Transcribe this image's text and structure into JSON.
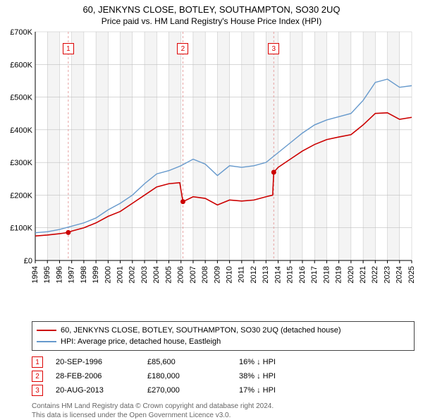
{
  "title": "60, JENKYNS CLOSE, BOTLEY, SOUTHAMPTON, SO30 2UQ",
  "subtitle": "Price paid vs. HM Land Registry's House Price Index (HPI)",
  "chart": {
    "type": "line",
    "x_years": [
      1994,
      1995,
      1996,
      1997,
      1998,
      1999,
      2000,
      2001,
      2002,
      2003,
      2004,
      2005,
      2006,
      2007,
      2008,
      2009,
      2010,
      2011,
      2012,
      2013,
      2014,
      2015,
      2016,
      2017,
      2018,
      2019,
      2020,
      2021,
      2022,
      2023,
      2024,
      2025
    ],
    "xlim": [
      1994,
      2025
    ],
    "ylim": [
      0,
      700000
    ],
    "ytick_step": 100000,
    "ytick_labels": [
      "£0",
      "£100K",
      "£200K",
      "£300K",
      "£400K",
      "£500K",
      "£600K",
      "£700K"
    ],
    "background_color": "#ffffff",
    "alt_band_color": "#f4f4f4",
    "grid_color": "#bfbfbf",
    "axis_color": "#000000",
    "series": [
      {
        "name": "hpi",
        "color": "#6699cc",
        "width": 1.4,
        "points": [
          [
            1994,
            85000
          ],
          [
            1995,
            88000
          ],
          [
            1996,
            95000
          ],
          [
            1997,
            105000
          ],
          [
            1998,
            115000
          ],
          [
            1999,
            130000
          ],
          [
            2000,
            155000
          ],
          [
            2001,
            175000
          ],
          [
            2002,
            200000
          ],
          [
            2003,
            235000
          ],
          [
            2004,
            265000
          ],
          [
            2005,
            275000
          ],
          [
            2006,
            290000
          ],
          [
            2007,
            310000
          ],
          [
            2008,
            295000
          ],
          [
            2009,
            260000
          ],
          [
            2010,
            290000
          ],
          [
            2011,
            285000
          ],
          [
            2012,
            290000
          ],
          [
            2013,
            300000
          ],
          [
            2014,
            330000
          ],
          [
            2015,
            360000
          ],
          [
            2016,
            390000
          ],
          [
            2017,
            415000
          ],
          [
            2018,
            430000
          ],
          [
            2019,
            440000
          ],
          [
            2020,
            450000
          ],
          [
            2021,
            490000
          ],
          [
            2022,
            545000
          ],
          [
            2023,
            555000
          ],
          [
            2024,
            530000
          ],
          [
            2025,
            535000
          ]
        ]
      },
      {
        "name": "property",
        "color": "#cc0000",
        "width": 1.6,
        "points": [
          [
            1994,
            75000
          ],
          [
            1995,
            78000
          ],
          [
            1996,
            82000
          ],
          [
            1996.72,
            85600
          ],
          [
            1997,
            90000
          ],
          [
            1998,
            100000
          ],
          [
            1999,
            115000
          ],
          [
            2000,
            135000
          ],
          [
            2001,
            150000
          ],
          [
            2002,
            175000
          ],
          [
            2003,
            200000
          ],
          [
            2004,
            225000
          ],
          [
            2005,
            235000
          ],
          [
            2005.9,
            238000
          ],
          [
            2006.16,
            180000
          ],
          [
            2007,
            195000
          ],
          [
            2008,
            190000
          ],
          [
            2009,
            170000
          ],
          [
            2010,
            185000
          ],
          [
            2011,
            182000
          ],
          [
            2012,
            185000
          ],
          [
            2013,
            195000
          ],
          [
            2013.55,
            200000
          ],
          [
            2013.64,
            270000
          ],
          [
            2014,
            285000
          ],
          [
            2015,
            310000
          ],
          [
            2016,
            335000
          ],
          [
            2017,
            355000
          ],
          [
            2018,
            370000
          ],
          [
            2019,
            378000
          ],
          [
            2020,
            385000
          ],
          [
            2021,
            415000
          ],
          [
            2022,
            450000
          ],
          [
            2023,
            452000
          ],
          [
            2024,
            432000
          ],
          [
            2025,
            438000
          ]
        ]
      }
    ],
    "sale_markers": [
      {
        "num": "1",
        "x": 1996.72,
        "y": 85600
      },
      {
        "num": "2",
        "x": 2006.16,
        "y": 180000
      },
      {
        "num": "3",
        "x": 2013.64,
        "y": 270000
      }
    ],
    "marker_line_color": "#e6a0a0",
    "marker_dot_color": "#cc0000"
  },
  "legend": {
    "items": [
      {
        "color": "#cc0000",
        "label": "60, JENKYNS CLOSE, BOTLEY, SOUTHAMPTON, SO30 2UQ (detached house)"
      },
      {
        "color": "#6699cc",
        "label": "HPI: Average price, detached house, Eastleigh"
      }
    ]
  },
  "transactions": [
    {
      "num": "1",
      "date": "20-SEP-1996",
      "price": "£85,600",
      "diff": "16% ↓ HPI"
    },
    {
      "num": "2",
      "date": "28-FEB-2006",
      "price": "£180,000",
      "diff": "38% ↓ HPI"
    },
    {
      "num": "3",
      "date": "20-AUG-2013",
      "price": "£270,000",
      "diff": "17% ↓ HPI"
    }
  ],
  "licence": {
    "l1": "Contains HM Land Registry data © Crown copyright and database right 2024.",
    "l2": "This data is licensed under the Open Government Licence v3.0."
  }
}
